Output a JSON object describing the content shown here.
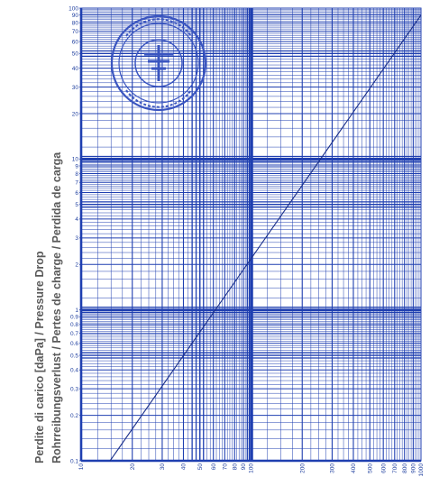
{
  "chart_data": {
    "type": "line",
    "title": "",
    "xlabel": "",
    "ylabel_lines": [
      "Perdite di carico [daPa] / Pressure Drop",
      "Rohrreibungsverlust / Pertes de charge / Perdida de carga"
    ],
    "x_scale": "log",
    "y_scale": "log",
    "xlim": [
      10,
      1000
    ],
    "ylim": [
      0.1,
      100
    ],
    "x_tick_labels": [
      "10",
      "20",
      "30",
      "40",
      "50",
      "60",
      "70",
      "80",
      "90",
      "100",
      "200",
      "300",
      "400",
      "500",
      "600",
      "700",
      "800",
      "900",
      "1000"
    ],
    "x_tick_values": [
      10,
      20,
      30,
      40,
      50,
      60,
      70,
      80,
      90,
      100,
      200,
      300,
      400,
      500,
      600,
      700,
      800,
      900,
      1000
    ],
    "y_tick_labels": [
      "0.1",
      "0.2",
      "0.3",
      "0.4",
      "0.5",
      "0.6",
      "0.7",
      "0.8",
      "0.9",
      "1",
      "2",
      "3",
      "4",
      "5",
      "6",
      "7",
      "8",
      "9",
      "10",
      "20",
      "30",
      "40",
      "50",
      "60",
      "70",
      "80",
      "90",
      "100"
    ],
    "y_tick_values": [
      0.1,
      0.2,
      0.3,
      0.4,
      0.5,
      0.6,
      0.7,
      0.8,
      0.9,
      1,
      2,
      3,
      4,
      5,
      6,
      7,
      8,
      9,
      10,
      20,
      30,
      40,
      50,
      60,
      70,
      80,
      90,
      100
    ],
    "grid": true,
    "series": [
      {
        "points": [
          [
            14.8,
            0.1
          ],
          [
            1000,
            90
          ]
        ]
      }
    ],
    "colors": {
      "grid": "#1f3fb0",
      "background": "#ffffff",
      "line": "#1a2f8a",
      "label": "#5a5a5a",
      "stamp": "#3a55c0"
    }
  }
}
